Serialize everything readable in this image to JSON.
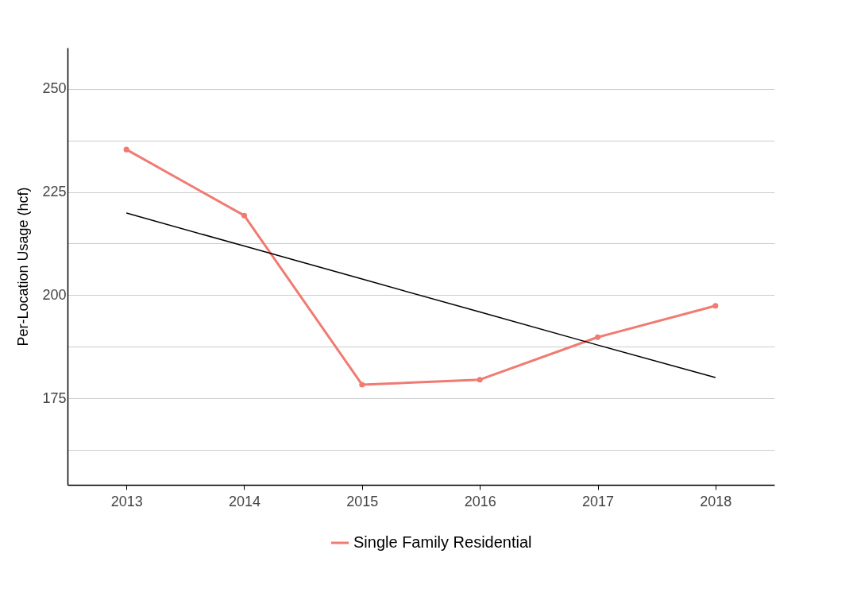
{
  "chart_data": {
    "type": "line",
    "ylabel": "Per-Location Usage (hcf)",
    "categories": [
      "2013",
      "2014",
      "2015",
      "2016",
      "2017",
      "2018"
    ],
    "series": [
      {
        "name": "Single Family Residential",
        "color": "#f07b72",
        "values": [
          235.3,
          219.3,
          178.3,
          179.5,
          189.8,
          197.4
        ],
        "marker": "circle"
      },
      {
        "type": "line",
        "color": "#000000",
        "values": [
          219.9,
          211.9,
          203.9,
          195.9,
          187.9,
          180.0
        ],
        "marker": "none"
      }
    ],
    "ylim": [
      154,
      260
    ],
    "yticks": [
      {
        "value": 162.5,
        "label": null
      },
      175,
      {
        "value": 187.5,
        "label": null
      },
      200,
      {
        "value": 212.5,
        "label": null
      },
      225,
      {
        "value": 237.5,
        "label": null
      },
      250
    ],
    "grid": "y",
    "legend": "bottom",
    "line_style": "solid"
  }
}
